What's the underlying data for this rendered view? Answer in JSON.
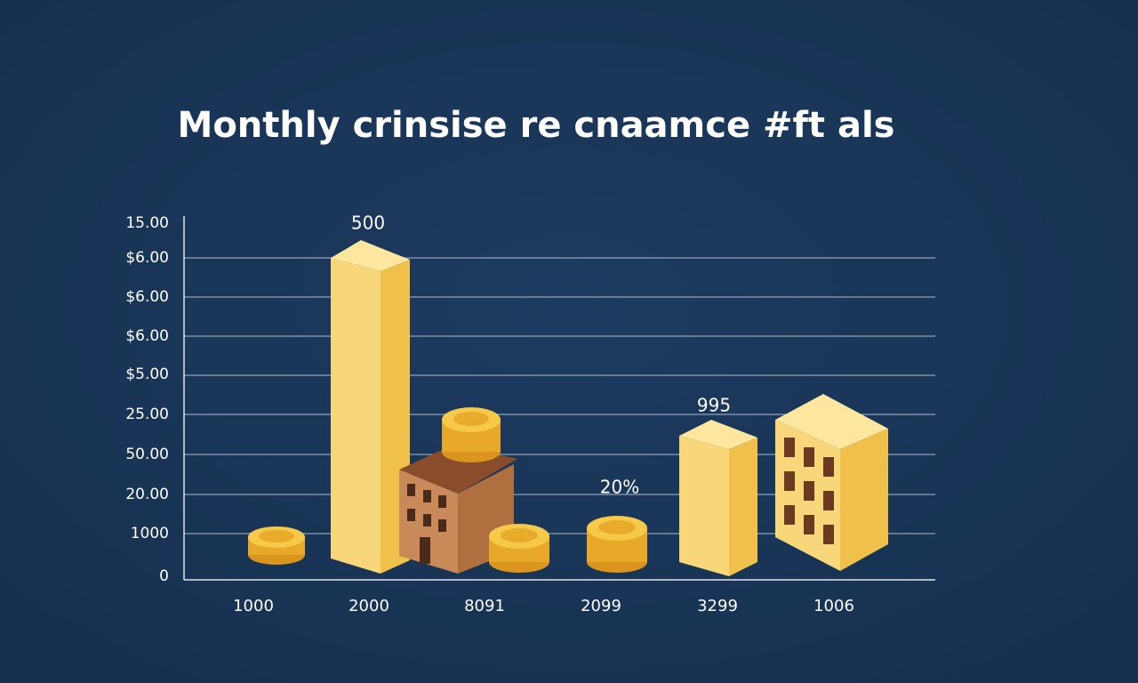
{
  "title": "Monthly crinsise re cnaamce #ft als",
  "y_axis_labels": [
    "15.00",
    "$6.00",
    "$6.00",
    "$6.00",
    "$5.00",
    "25.00",
    "50.00",
    "20.00",
    "1000",
    "0"
  ],
  "x_axis_labels": [
    "1000",
    "2000",
    "8091",
    "2099",
    "3299",
    "1006"
  ],
  "annotations": [
    "500",
    "995",
    "20%"
  ]
}
